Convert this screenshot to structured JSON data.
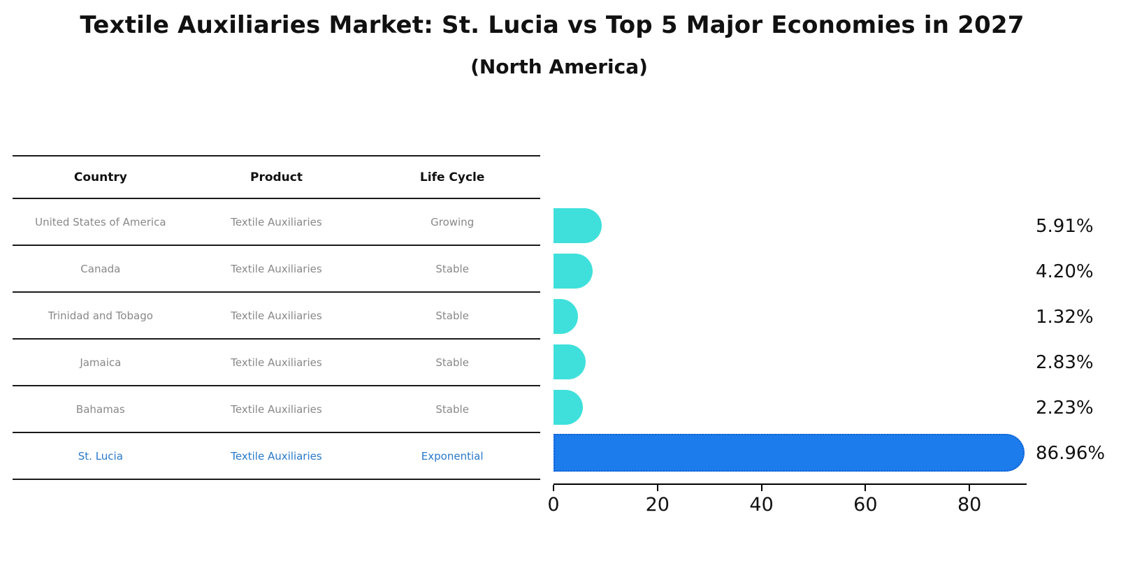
{
  "title": "Textile Auxiliaries Market: St. Lucia vs Top 5 Major Economies in 2027",
  "subtitle": "(North America)",
  "table": {
    "headers": [
      "Country",
      "Product",
      "Life Cycle"
    ],
    "rows": [
      {
        "country": "United States of America",
        "product": "Textile Auxiliaries",
        "life_cycle": "Growing",
        "highlight": false
      },
      {
        "country": "Canada",
        "product": "Textile Auxiliaries",
        "life_cycle": "Stable",
        "highlight": false
      },
      {
        "country": "Trinidad and Tobago",
        "product": "Textile Auxiliaries",
        "life_cycle": "Stable",
        "highlight": false
      },
      {
        "country": "Jamaica",
        "product": "Textile Auxiliaries",
        "life_cycle": "Stable",
        "highlight": false
      },
      {
        "country": "Bahamas",
        "product": "Textile Auxiliaries",
        "life_cycle": "Stable",
        "highlight": false
      },
      {
        "country": "St. Lucia",
        "product": "Textile Auxiliaries",
        "life_cycle": "Exponential",
        "highlight": true
      }
    ]
  },
  "chart_data": {
    "type": "bar",
    "orientation": "horizontal",
    "title": "Textile Auxiliaries Market: St. Lucia vs Top 5 Major Economies in 2027",
    "subtitle": "(North America)",
    "categories": [
      "United States of America",
      "Canada",
      "Trinidad and Tobago",
      "Jamaica",
      "Bahamas",
      "St. Lucia"
    ],
    "values": [
      5.91,
      4.2,
      1.32,
      2.83,
      2.23,
      86.96
    ],
    "value_labels": [
      "5.91%",
      "4.20%",
      "1.32%",
      "2.83%",
      "2.23%",
      "86.96%"
    ],
    "highlight_index": 5,
    "xticks": [
      0,
      20,
      40,
      60,
      80
    ],
    "xlim": [
      0,
      91
    ],
    "grid": false,
    "legend": false,
    "bar_color_default": "#3fe0db",
    "bar_color_highlight": "#1c7cec"
  },
  "colors": {
    "cyan_bar": "#3fe0db",
    "blue_bar": "#1c7cec",
    "blue_bar_border": "#1560d0",
    "highlight_text": "#2878c8",
    "muted_text": "#888888",
    "axis": "#000000"
  }
}
